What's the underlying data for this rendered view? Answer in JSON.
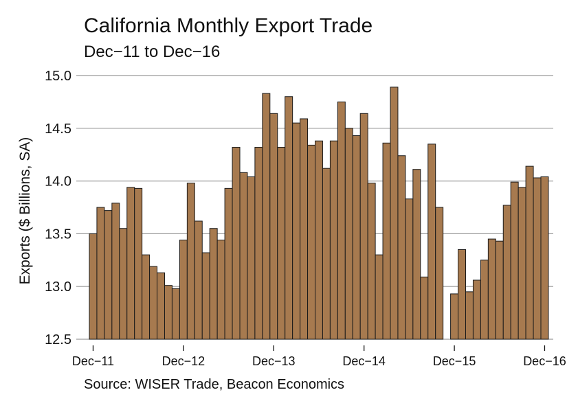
{
  "title": "California Monthly Export Trade",
  "subtitle": "Dec−11 to Dec−16",
  "source": "Source: WISER Trade, Beacon Economics",
  "colors": {
    "bar_fill": "#A77A4F",
    "bar_stroke": "#1a1a1a",
    "grid": "#9a9a9a"
  },
  "chart_data": {
    "type": "bar",
    "title": "California Monthly Export Trade",
    "subtitle": "Dec−11 to Dec−16",
    "xlabel": "",
    "ylabel": "Exports ($ Billions, SA)",
    "ylim": [
      12.5,
      15.0
    ],
    "yticks": [
      "12.5",
      "13.0",
      "13.5",
      "14.0",
      "14.5",
      "15.0"
    ],
    "grid": "horizontal",
    "x_ticks": [
      "Dec−11",
      "Dec−12",
      "Dec−13",
      "Dec−14",
      "Dec−15",
      "Dec−16"
    ],
    "x_tick_indices": [
      0,
      12,
      24,
      36,
      48,
      60
    ],
    "categories": [
      "Dec-11",
      "Jan-12",
      "Feb-12",
      "Mar-12",
      "Apr-12",
      "May-12",
      "Jun-12",
      "Jul-12",
      "Aug-12",
      "Sep-12",
      "Oct-12",
      "Nov-12",
      "Dec-12",
      "Jan-13",
      "Feb-13",
      "Mar-13",
      "Apr-13",
      "May-13",
      "Jun-13",
      "Jul-13",
      "Aug-13",
      "Sep-13",
      "Oct-13",
      "Nov-13",
      "Dec-13",
      "Jan-14",
      "Feb-14",
      "Mar-14",
      "Apr-14",
      "May-14",
      "Jun-14",
      "Jul-14",
      "Aug-14",
      "Sep-14",
      "Oct-14",
      "Nov-14",
      "Dec-14",
      "Jan-15",
      "Feb-15",
      "Mar-15",
      "Apr-15",
      "May-15",
      "Jun-15",
      "Jul-15",
      "Aug-15",
      "Sep-15",
      "Oct-15",
      "Nov-15",
      "Dec-15",
      "Jan-16",
      "Feb-16",
      "Mar-16",
      "Apr-16",
      "May-16",
      "Jun-16",
      "Jul-16",
      "Aug-16",
      "Sep-16",
      "Oct-16",
      "Nov-16",
      "Dec-16"
    ],
    "values": [
      13.5,
      13.75,
      13.72,
      13.79,
      13.55,
      13.94,
      13.93,
      13.3,
      13.19,
      13.13,
      13.01,
      12.98,
      13.44,
      13.98,
      13.62,
      13.32,
      13.55,
      13.44,
      13.93,
      14.32,
      14.08,
      14.04,
      14.32,
      14.83,
      14.64,
      14.32,
      14.8,
      14.55,
      14.59,
      14.34,
      14.38,
      14.12,
      14.38,
      14.75,
      14.5,
      14.43,
      14.64,
      13.98,
      13.3,
      14.36,
      14.89,
      14.24,
      13.83,
      14.11,
      13.09,
      14.35,
      13.75,
      null,
      12.93,
      13.35,
      12.95,
      13.06,
      13.25,
      13.45,
      13.43,
      13.77,
      13.99,
      13.94,
      14.14,
      14.03,
      14.04
    ]
  }
}
